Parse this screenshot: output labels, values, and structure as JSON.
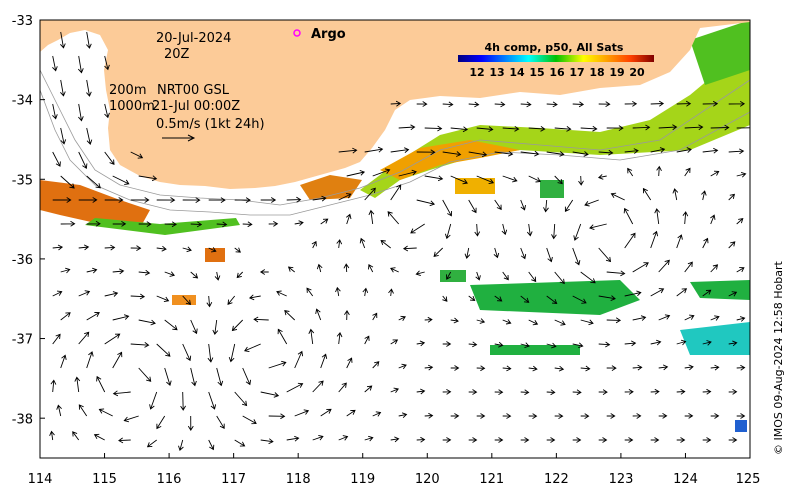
{
  "map": {
    "date": "20-Jul-2024",
    "time": "20Z",
    "depth_line1": "200m",
    "depth_line2": "1000m",
    "product_line1": "NRT00 GSL",
    "product_line2": "21-Jul 00:00Z",
    "scale_label": "0.5m/s (1kt 24h)",
    "legend_argo": "Argo",
    "credit": "© IMOS 09-Aug-2024 12:58 Hobart"
  },
  "axes": {
    "lon_ticks": [
      "114",
      "115",
      "116",
      "117",
      "118",
      "119",
      "120",
      "121",
      "122",
      "123",
      "124",
      "125"
    ],
    "lat_ticks": [
      "-33",
      "-34",
      "-35",
      "-36",
      "-37",
      "-38"
    ],
    "lon_range": [
      114,
      125
    ],
    "lat_range": [
      -38.5,
      -33
    ]
  },
  "colorbar": {
    "title": "4h comp, p50, All Sats",
    "ticks": [
      "12",
      "13",
      "14",
      "15",
      "16",
      "17",
      "18",
      "19",
      "20"
    ],
    "range": [
      11.5,
      20.5
    ]
  },
  "colors": {
    "land": "#fccb98",
    "arrow": "#000000",
    "argo": "#ff00ff",
    "contour": "#9a9a9a"
  }
}
